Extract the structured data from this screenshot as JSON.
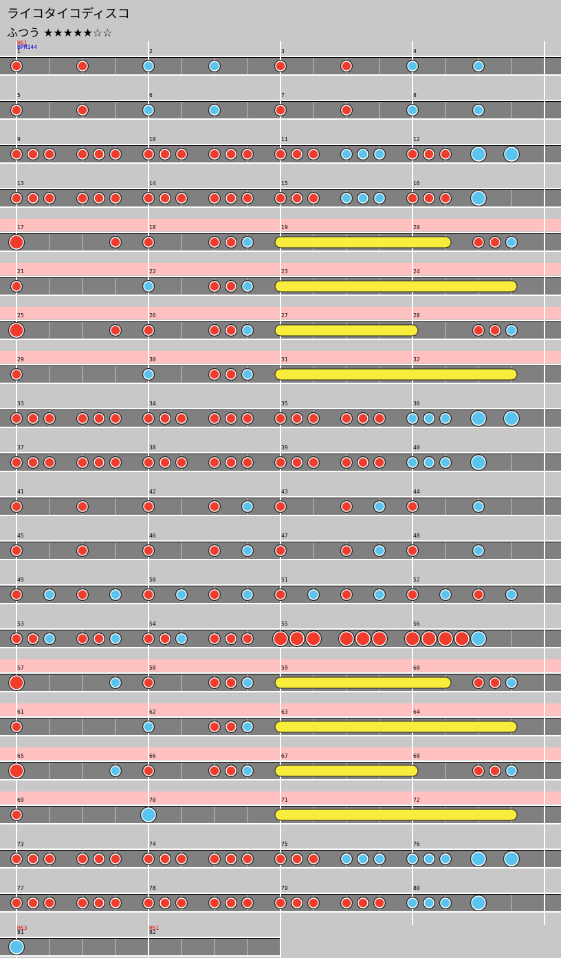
{
  "header": {
    "title": "ライコタイコディスコ",
    "difficulty": "ふつう ★★★★★☆☆"
  },
  "rows": [
    {
      "gogo": false,
      "measures": [
        {
          "number": 1,
          "labels": [
            {
              "text": "HS1",
              "color": "#e00000"
            },
            {
              "text": "BPM144",
              "color": "#0000e0"
            }
          ]
        },
        {
          "number": 2
        },
        {
          "number": 3
        },
        {
          "number": 4
        }
      ],
      "rolls": [],
      "notes": [
        [
          0,
          "d"
        ],
        [
          4,
          "d"
        ],
        [
          8,
          "k"
        ],
        [
          12,
          "k"
        ],
        [
          16,
          "d"
        ],
        [
          20,
          "d"
        ],
        [
          24,
          "k"
        ],
        [
          28,
          "k"
        ]
      ]
    },
    {
      "gogo": false,
      "measures": [
        {
          "number": 5
        },
        {
          "number": 6
        },
        {
          "number": 7
        },
        {
          "number": 8
        }
      ],
      "rolls": [],
      "notes": [
        [
          0,
          "d"
        ],
        [
          4,
          "d"
        ],
        [
          8,
          "k"
        ],
        [
          12,
          "k"
        ],
        [
          16,
          "d"
        ],
        [
          20,
          "d"
        ],
        [
          24,
          "k"
        ],
        [
          28,
          "k"
        ]
      ]
    },
    {
      "gogo": false,
      "measures": [
        {
          "number": 9
        },
        {
          "number": 10
        },
        {
          "number": 11
        },
        {
          "number": 12
        }
      ],
      "rolls": [],
      "notes": [
        [
          0,
          "d"
        ],
        [
          1,
          "d"
        ],
        [
          2,
          "d"
        ],
        [
          4,
          "d"
        ],
        [
          5,
          "d"
        ],
        [
          6,
          "d"
        ],
        [
          8,
          "d"
        ],
        [
          9,
          "d"
        ],
        [
          10,
          "d"
        ],
        [
          12,
          "d"
        ],
        [
          13,
          "d"
        ],
        [
          14,
          "d"
        ],
        [
          16,
          "d"
        ],
        [
          17,
          "d"
        ],
        [
          18,
          "d"
        ],
        [
          20,
          "k"
        ],
        [
          21,
          "k"
        ],
        [
          22,
          "k"
        ],
        [
          24,
          "d"
        ],
        [
          25,
          "d"
        ],
        [
          26,
          "d"
        ],
        [
          28,
          "K"
        ],
        [
          30,
          "K"
        ]
      ]
    },
    {
      "gogo": false,
      "measures": [
        {
          "number": 13
        },
        {
          "number": 14
        },
        {
          "number": 15
        },
        {
          "number": 16
        }
      ],
      "rolls": [],
      "notes": [
        [
          0,
          "d"
        ],
        [
          1,
          "d"
        ],
        [
          2,
          "d"
        ],
        [
          4,
          "d"
        ],
        [
          5,
          "d"
        ],
        [
          6,
          "d"
        ],
        [
          8,
          "d"
        ],
        [
          9,
          "d"
        ],
        [
          10,
          "d"
        ],
        [
          12,
          "d"
        ],
        [
          13,
          "d"
        ],
        [
          14,
          "d"
        ],
        [
          16,
          "d"
        ],
        [
          17,
          "d"
        ],
        [
          18,
          "d"
        ],
        [
          20,
          "k"
        ],
        [
          21,
          "k"
        ],
        [
          22,
          "k"
        ],
        [
          24,
          "d"
        ],
        [
          25,
          "d"
        ],
        [
          26,
          "d"
        ],
        [
          28,
          "K"
        ]
      ]
    },
    {
      "gogo": true,
      "measures": [
        {
          "number": 17
        },
        {
          "number": 18
        },
        {
          "number": 19
        },
        {
          "number": 20
        }
      ],
      "rolls": [
        [
          16,
          26
        ]
      ],
      "notes": [
        [
          0,
          "D"
        ],
        [
          6,
          "d"
        ],
        [
          8,
          "d"
        ],
        [
          12,
          "d"
        ],
        [
          13,
          "d"
        ],
        [
          14,
          "k"
        ],
        [
          28,
          "d"
        ],
        [
          29,
          "d"
        ],
        [
          30,
          "k"
        ]
      ]
    },
    {
      "gogo": true,
      "measures": [
        {
          "number": 21
        },
        {
          "number": 22
        },
        {
          "number": 23
        },
        {
          "number": 24
        }
      ],
      "rolls": [
        [
          16,
          30
        ]
      ],
      "notes": [
        [
          0,
          "d"
        ],
        [
          8,
          "k"
        ],
        [
          12,
          "d"
        ],
        [
          13,
          "d"
        ],
        [
          14,
          "k"
        ]
      ]
    },
    {
      "gogo": true,
      "measures": [
        {
          "number": 25
        },
        {
          "number": 26
        },
        {
          "number": 27
        },
        {
          "number": 28
        }
      ],
      "rolls": [
        [
          16,
          24
        ]
      ],
      "notes": [
        [
          0,
          "D"
        ],
        [
          6,
          "d"
        ],
        [
          8,
          "d"
        ],
        [
          12,
          "d"
        ],
        [
          13,
          "d"
        ],
        [
          14,
          "k"
        ],
        [
          28,
          "d"
        ],
        [
          29,
          "d"
        ],
        [
          30,
          "k"
        ]
      ]
    },
    {
      "gogo": true,
      "measures": [
        {
          "number": 29
        },
        {
          "number": 30
        },
        {
          "number": 31
        },
        {
          "number": 32
        }
      ],
      "rolls": [
        [
          16,
          30
        ]
      ],
      "notes": [
        [
          0,
          "d"
        ],
        [
          8,
          "k"
        ],
        [
          12,
          "d"
        ],
        [
          13,
          "d"
        ],
        [
          14,
          "k"
        ]
      ]
    },
    {
      "gogo": false,
      "measures": [
        {
          "number": 33
        },
        {
          "number": 34
        },
        {
          "number": 35
        },
        {
          "number": 36
        }
      ],
      "rolls": [],
      "notes": [
        [
          0,
          "d"
        ],
        [
          1,
          "d"
        ],
        [
          2,
          "d"
        ],
        [
          4,
          "d"
        ],
        [
          5,
          "d"
        ],
        [
          6,
          "d"
        ],
        [
          8,
          "d"
        ],
        [
          9,
          "d"
        ],
        [
          10,
          "d"
        ],
        [
          12,
          "d"
        ],
        [
          13,
          "d"
        ],
        [
          14,
          "d"
        ],
        [
          16,
          "d"
        ],
        [
          17,
          "d"
        ],
        [
          18,
          "d"
        ],
        [
          20,
          "d"
        ],
        [
          21,
          "d"
        ],
        [
          22,
          "d"
        ],
        [
          24,
          "k"
        ],
        [
          25,
          "k"
        ],
        [
          26,
          "k"
        ],
        [
          28,
          "K"
        ],
        [
          30,
          "K"
        ]
      ]
    },
    {
      "gogo": false,
      "measures": [
        {
          "number": 37
        },
        {
          "number": 38
        },
        {
          "number": 39
        },
        {
          "number": 40
        }
      ],
      "rolls": [],
      "notes": [
        [
          0,
          "d"
        ],
        [
          1,
          "d"
        ],
        [
          2,
          "d"
        ],
        [
          4,
          "d"
        ],
        [
          5,
          "d"
        ],
        [
          6,
          "d"
        ],
        [
          8,
          "d"
        ],
        [
          9,
          "d"
        ],
        [
          10,
          "d"
        ],
        [
          12,
          "d"
        ],
        [
          13,
          "d"
        ],
        [
          14,
          "d"
        ],
        [
          16,
          "d"
        ],
        [
          17,
          "d"
        ],
        [
          18,
          "d"
        ],
        [
          20,
          "d"
        ],
        [
          21,
          "d"
        ],
        [
          22,
          "d"
        ],
        [
          24,
          "k"
        ],
        [
          25,
          "k"
        ],
        [
          26,
          "k"
        ],
        [
          28,
          "K"
        ]
      ]
    },
    {
      "gogo": false,
      "measures": [
        {
          "number": 41
        },
        {
          "number": 42
        },
        {
          "number": 43
        },
        {
          "number": 44
        }
      ],
      "rolls": [],
      "notes": [
        [
          0,
          "d"
        ],
        [
          4,
          "d"
        ],
        [
          8,
          "d"
        ],
        [
          12,
          "d"
        ],
        [
          14,
          "k"
        ],
        [
          16,
          "d"
        ],
        [
          20,
          "d"
        ],
        [
          22,
          "k"
        ],
        [
          24,
          "d"
        ],
        [
          28,
          "k"
        ]
      ]
    },
    {
      "gogo": false,
      "measures": [
        {
          "number": 45
        },
        {
          "number": 46
        },
        {
          "number": 47
        },
        {
          "number": 48
        }
      ],
      "rolls": [],
      "notes": [
        [
          0,
          "d"
        ],
        [
          4,
          "d"
        ],
        [
          8,
          "d"
        ],
        [
          12,
          "d"
        ],
        [
          14,
          "k"
        ],
        [
          16,
          "d"
        ],
        [
          20,
          "d"
        ],
        [
          22,
          "k"
        ],
        [
          24,
          "d"
        ],
        [
          28,
          "k"
        ]
      ]
    },
    {
      "gogo": false,
      "measures": [
        {
          "number": 49
        },
        {
          "number": 50
        },
        {
          "number": 51
        },
        {
          "number": 52
        }
      ],
      "rolls": [],
      "notes": [
        [
          0,
          "d"
        ],
        [
          2,
          "k"
        ],
        [
          4,
          "d"
        ],
        [
          6,
          "k"
        ],
        [
          8,
          "d"
        ],
        [
          10,
          "k"
        ],
        [
          12,
          "d"
        ],
        [
          14,
          "k"
        ],
        [
          16,
          "d"
        ],
        [
          18,
          "k"
        ],
        [
          20,
          "d"
        ],
        [
          22,
          "k"
        ],
        [
          24,
          "d"
        ],
        [
          26,
          "k"
        ],
        [
          28,
          "d"
        ],
        [
          30,
          "k"
        ]
      ]
    },
    {
      "gogo": false,
      "measures": [
        {
          "number": 53
        },
        {
          "number": 54
        },
        {
          "number": 55
        },
        {
          "number": 56
        }
      ],
      "rolls": [],
      "notes": [
        [
          0,
          "d"
        ],
        [
          1,
          "d"
        ],
        [
          2,
          "k"
        ],
        [
          4,
          "d"
        ],
        [
          5,
          "d"
        ],
        [
          6,
          "k"
        ],
        [
          8,
          "d"
        ],
        [
          9,
          "d"
        ],
        [
          10,
          "k"
        ],
        [
          12,
          "d"
        ],
        [
          13,
          "d"
        ],
        [
          14,
          "d"
        ],
        [
          16,
          "D"
        ],
        [
          17,
          "D"
        ],
        [
          18,
          "D"
        ],
        [
          20,
          "D"
        ],
        [
          21,
          "D"
        ],
        [
          22,
          "D"
        ],
        [
          24,
          "D"
        ],
        [
          25,
          "D"
        ],
        [
          26,
          "D"
        ],
        [
          27,
          "D"
        ],
        [
          28,
          "K"
        ]
      ]
    },
    {
      "gogo": true,
      "measures": [
        {
          "number": 57
        },
        {
          "number": 58
        },
        {
          "number": 59
        },
        {
          "number": 60
        }
      ],
      "rolls": [
        [
          16,
          26
        ]
      ],
      "notes": [
        [
          0,
          "D"
        ],
        [
          6,
          "k"
        ],
        [
          8,
          "d"
        ],
        [
          12,
          "d"
        ],
        [
          13,
          "d"
        ],
        [
          14,
          "k"
        ],
        [
          28,
          "d"
        ],
        [
          29,
          "d"
        ],
        [
          30,
          "k"
        ]
      ]
    },
    {
      "gogo": true,
      "measures": [
        {
          "number": 61
        },
        {
          "number": 62
        },
        {
          "number": 63
        },
        {
          "number": 64
        }
      ],
      "rolls": [
        [
          16,
          30
        ]
      ],
      "notes": [
        [
          0,
          "d"
        ],
        [
          8,
          "k"
        ],
        [
          12,
          "d"
        ],
        [
          13,
          "d"
        ],
        [
          14,
          "k"
        ]
      ]
    },
    {
      "gogo": true,
      "measures": [
        {
          "number": 65
        },
        {
          "number": 66
        },
        {
          "number": 67
        },
        {
          "number": 68
        }
      ],
      "rolls": [
        [
          16,
          24
        ]
      ],
      "notes": [
        [
          0,
          "D"
        ],
        [
          6,
          "k"
        ],
        [
          8,
          "d"
        ],
        [
          12,
          "d"
        ],
        [
          13,
          "d"
        ],
        [
          14,
          "k"
        ],
        [
          28,
          "d"
        ],
        [
          29,
          "d"
        ],
        [
          30,
          "k"
        ]
      ]
    },
    {
      "gogo": true,
      "measures": [
        {
          "number": 69
        },
        {
          "number": 70
        },
        {
          "number": 71
        },
        {
          "number": 72
        }
      ],
      "rolls": [
        [
          16,
          30
        ]
      ],
      "notes": [
        [
          0,
          "d"
        ],
        [
          8,
          "K"
        ]
      ]
    },
    {
      "gogo": false,
      "measures": [
        {
          "number": 73
        },
        {
          "number": 74
        },
        {
          "number": 75
        },
        {
          "number": 76
        }
      ],
      "rolls": [],
      "notes": [
        [
          0,
          "d"
        ],
        [
          1,
          "d"
        ],
        [
          2,
          "d"
        ],
        [
          4,
          "d"
        ],
        [
          5,
          "d"
        ],
        [
          6,
          "d"
        ],
        [
          8,
          "d"
        ],
        [
          9,
          "d"
        ],
        [
          10,
          "d"
        ],
        [
          12,
          "d"
        ],
        [
          13,
          "d"
        ],
        [
          14,
          "d"
        ],
        [
          16,
          "d"
        ],
        [
          17,
          "d"
        ],
        [
          18,
          "d"
        ],
        [
          20,
          "k"
        ],
        [
          21,
          "k"
        ],
        [
          22,
          "k"
        ],
        [
          24,
          "k"
        ],
        [
          25,
          "k"
        ],
        [
          26,
          "k"
        ],
        [
          28,
          "K"
        ],
        [
          30,
          "K"
        ]
      ]
    },
    {
      "gogo": false,
      "measures": [
        {
          "number": 77
        },
        {
          "number": 78
        },
        {
          "number": 79
        },
        {
          "number": 80
        }
      ],
      "rolls": [],
      "notes": [
        [
          0,
          "d"
        ],
        [
          1,
          "d"
        ],
        [
          2,
          "d"
        ],
        [
          4,
          "d"
        ],
        [
          5,
          "d"
        ],
        [
          6,
          "d"
        ],
        [
          8,
          "d"
        ],
        [
          9,
          "d"
        ],
        [
          10,
          "d"
        ],
        [
          12,
          "d"
        ],
        [
          13,
          "d"
        ],
        [
          14,
          "d"
        ],
        [
          16,
          "d"
        ],
        [
          17,
          "d"
        ],
        [
          18,
          "d"
        ],
        [
          20,
          "d"
        ],
        [
          21,
          "d"
        ],
        [
          22,
          "d"
        ],
        [
          24,
          "k"
        ],
        [
          25,
          "k"
        ],
        [
          26,
          "k"
        ],
        [
          28,
          "K"
        ]
      ]
    },
    {
      "gogo": false,
      "measures": [
        {
          "number": 81,
          "labels": [
            {
              "text": "HS3",
              "color": "#e00000"
            }
          ]
        },
        {
          "number": 82,
          "labels": [
            {
              "text": "HS1",
              "color": "#e00000"
            }
          ]
        }
      ],
      "rolls": [],
      "notes": [
        [
          0,
          "K"
        ]
      ]
    }
  ]
}
